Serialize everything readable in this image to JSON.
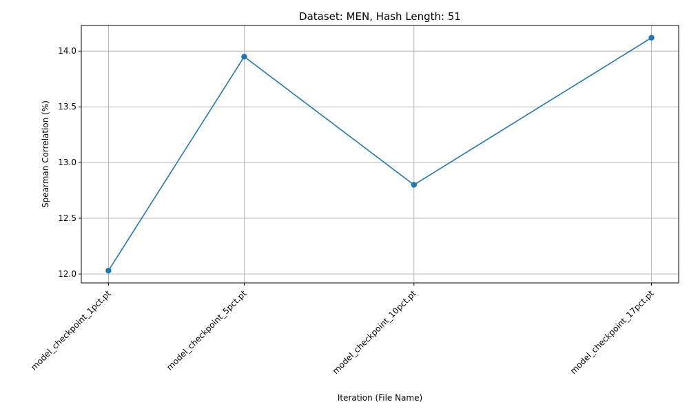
{
  "chart_data": {
    "type": "line",
    "title": "Dataset: MEN, Hash Length: 51",
    "xlabel": "Iteration (File Name)",
    "ylabel": "Spearman Correlation (%)",
    "x": [
      1,
      5,
      10,
      17
    ],
    "categories": [
      "model_checkpoint_1pct.pt",
      "model_checkpoint_5pct.pt",
      "model_checkpoint_10pct.pt",
      "model_checkpoint_17pct.pt"
    ],
    "series": [
      {
        "values": [
          12.03,
          13.95,
          12.8,
          14.12
        ],
        "color": "#1f77b4",
        "marker": "circle"
      }
    ],
    "xlim": [
      0.2,
      17.8
    ],
    "ylim": [
      11.92,
      14.23
    ],
    "yticks": [
      12.0,
      12.5,
      13.0,
      13.5,
      14.0
    ],
    "ytick_labels": [
      "12.0",
      "12.5",
      "13.0",
      "13.5",
      "14.0"
    ],
    "grid": true
  }
}
